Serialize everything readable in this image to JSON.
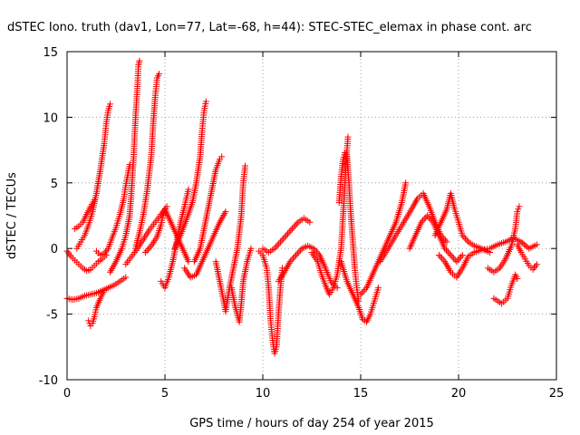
{
  "chart_data": {
    "type": "scatter",
    "title": "dSTEC Iono. truth (dav1, Lon=77, Lat=-68, h=44): STEC-STEC_elemax in phase cont. arc",
    "xlabel": "GPS time / hours of day 254 of year 2015",
    "ylabel": "dSTEC  / TECUs",
    "xlim": [
      0,
      25
    ],
    "ylim": [
      -10,
      15
    ],
    "xticks": [
      0,
      5,
      10,
      15,
      20,
      25
    ],
    "yticks": [
      -10,
      -5,
      0,
      5,
      10,
      15
    ],
    "xtick_labels": [
      "0",
      "5",
      "10",
      "15",
      "20",
      "25"
    ],
    "ytick_labels": [
      "-10",
      "-5",
      "0",
      "5",
      "10",
      "15"
    ],
    "grid": true,
    "marker": "+",
    "color": "#ff0000",
    "series": [
      {
        "values_xy": [
          [
            0.0,
            -0.2
          ],
          [
            0.2,
            -0.6
          ],
          [
            0.4,
            -0.9
          ],
          [
            0.6,
            -1.2
          ],
          [
            0.8,
            -1.5
          ],
          [
            1.0,
            -1.7
          ],
          [
            1.2,
            -1.6
          ],
          [
            1.4,
            -1.3
          ],
          [
            1.6,
            -1.0
          ],
          [
            1.8,
            -0.8
          ],
          [
            2.0,
            -0.5
          ]
        ]
      },
      {
        "values_xy": [
          [
            0.0,
            -3.8
          ],
          [
            0.3,
            -3.9
          ],
          [
            0.6,
            -3.8
          ],
          [
            0.9,
            -3.6
          ],
          [
            1.2,
            -3.5
          ],
          [
            1.5,
            -3.4
          ],
          [
            1.8,
            -3.2
          ],
          [
            2.1,
            -3.0
          ],
          [
            2.4,
            -2.8
          ],
          [
            2.7,
            -2.5
          ],
          [
            3.0,
            -2.2
          ]
        ]
      },
      {
        "values_xy": [
          [
            0.5,
            0.0
          ],
          [
            0.7,
            0.5
          ],
          [
            0.9,
            1.0
          ],
          [
            1.1,
            1.8
          ],
          [
            1.3,
            2.8
          ],
          [
            1.5,
            4.2
          ],
          [
            1.7,
            6.0
          ],
          [
            1.9,
            8.0
          ],
          [
            2.0,
            9.5
          ],
          [
            2.1,
            10.5
          ],
          [
            2.2,
            11.0
          ]
        ]
      },
      {
        "values_xy": [
          [
            0.4,
            1.5
          ],
          [
            0.6,
            1.7
          ],
          [
            0.8,
            2.0
          ],
          [
            1.0,
            2.6
          ],
          [
            1.2,
            3.2
          ],
          [
            1.4,
            3.7
          ]
        ]
      },
      {
        "values_xy": [
          [
            1.1,
            -5.5
          ],
          [
            1.2,
            -5.9
          ],
          [
            1.3,
            -5.7
          ],
          [
            1.4,
            -5.2
          ],
          [
            1.5,
            -4.5
          ],
          [
            1.7,
            -3.8
          ],
          [
            1.9,
            -3.2
          ]
        ]
      },
      {
        "values_xy": [
          [
            1.5,
            -0.2
          ],
          [
            1.7,
            -0.5
          ],
          [
            1.9,
            -0.4
          ],
          [
            2.1,
            0.0
          ],
          [
            2.3,
            0.8
          ],
          [
            2.5,
            1.6
          ],
          [
            2.7,
            2.6
          ],
          [
            2.9,
            3.8
          ],
          [
            3.0,
            4.8
          ],
          [
            3.1,
            5.6
          ],
          [
            3.2,
            6.4
          ]
        ]
      },
      {
        "values_xy": [
          [
            2.2,
            -1.8
          ],
          [
            2.5,
            -1.0
          ],
          [
            2.8,
            0.0
          ],
          [
            3.0,
            1.0
          ],
          [
            3.2,
            2.5
          ],
          [
            3.3,
            4.5
          ],
          [
            3.4,
            7.0
          ],
          [
            3.5,
            10.0
          ],
          [
            3.6,
            12.5
          ],
          [
            3.65,
            14.0
          ],
          [
            3.7,
            14.3
          ]
        ]
      },
      {
        "values_xy": [
          [
            3.5,
            0.0
          ],
          [
            3.7,
            1.2
          ],
          [
            3.9,
            2.6
          ],
          [
            4.1,
            4.5
          ],
          [
            4.3,
            7.0
          ],
          [
            4.4,
            9.5
          ],
          [
            4.5,
            11.5
          ],
          [
            4.6,
            13.0
          ],
          [
            4.7,
            13.3
          ]
        ]
      },
      {
        "values_xy": [
          [
            3.0,
            -1.2
          ],
          [
            3.3,
            -0.6
          ],
          [
            3.6,
            0.0
          ],
          [
            3.9,
            0.7
          ],
          [
            4.2,
            1.4
          ],
          [
            4.5,
            2.0
          ],
          [
            4.8,
            2.6
          ],
          [
            5.1,
            3.2
          ]
        ]
      },
      {
        "values_xy": [
          [
            4.0,
            -0.3
          ],
          [
            4.3,
            0.2
          ],
          [
            4.6,
            0.9
          ],
          [
            4.8,
            1.8
          ],
          [
            4.9,
            2.5
          ],
          [
            5.0,
            3.0
          ],
          [
            5.3,
            2.0
          ],
          [
            5.6,
            1.0
          ],
          [
            5.9,
            0.0
          ],
          [
            6.2,
            -1.0
          ]
        ]
      },
      {
        "values_xy": [
          [
            4.8,
            -2.5
          ],
          [
            5.0,
            -3.0
          ],
          [
            5.2,
            -2.2
          ],
          [
            5.4,
            -1.0
          ],
          [
            5.6,
            0.5
          ],
          [
            5.8,
            2.0
          ],
          [
            6.0,
            3.2
          ],
          [
            6.2,
            4.5
          ]
        ]
      },
      {
        "values_xy": [
          [
            5.5,
            0.0
          ],
          [
            5.8,
            1.0
          ],
          [
            6.1,
            2.2
          ],
          [
            6.4,
            3.5
          ],
          [
            6.6,
            5.0
          ],
          [
            6.8,
            7.0
          ],
          [
            6.9,
            9.0
          ],
          [
            7.0,
            10.5
          ],
          [
            7.1,
            11.2
          ]
        ]
      },
      {
        "values_xy": [
          [
            6.5,
            -1.0
          ],
          [
            6.8,
            0.0
          ],
          [
            7.0,
            1.5
          ],
          [
            7.2,
            3.0
          ],
          [
            7.4,
            4.5
          ],
          [
            7.6,
            6.0
          ],
          [
            7.8,
            6.8
          ],
          [
            7.9,
            7.0
          ]
        ]
      },
      {
        "values_xy": [
          [
            6.0,
            -1.5
          ],
          [
            6.3,
            -2.2
          ],
          [
            6.6,
            -2.0
          ],
          [
            6.9,
            -1.0
          ],
          [
            7.2,
            0.0
          ],
          [
            7.5,
            1.0
          ],
          [
            7.8,
            2.0
          ],
          [
            8.1,
            2.8
          ]
        ]
      },
      {
        "values_xy": [
          [
            7.6,
            -1.0
          ],
          [
            7.8,
            -2.5
          ],
          [
            8.0,
            -4.0
          ],
          [
            8.1,
            -4.8
          ],
          [
            8.3,
            -3.0
          ],
          [
            8.5,
            -1.5
          ],
          [
            8.7,
            0.0
          ],
          [
            8.9,
            2.5
          ],
          [
            9.0,
            5.0
          ],
          [
            9.1,
            6.3
          ]
        ]
      },
      {
        "values_xy": [
          [
            8.4,
            -3.0
          ],
          [
            8.6,
            -4.5
          ],
          [
            8.8,
            -5.6
          ],
          [
            8.9,
            -4.2
          ],
          [
            9.0,
            -2.5
          ],
          [
            9.2,
            -1.0
          ],
          [
            9.4,
            0.0
          ]
        ]
      },
      {
        "values_xy": [
          [
            9.8,
            -0.2
          ],
          [
            10.0,
            -0.5
          ],
          [
            10.2,
            -1.5
          ],
          [
            10.3,
            -3.0
          ],
          [
            10.4,
            -5.5
          ],
          [
            10.5,
            -7.0
          ],
          [
            10.6,
            -8.0
          ],
          [
            10.7,
            -7.5
          ],
          [
            10.8,
            -5.0
          ],
          [
            10.9,
            -3.0
          ],
          [
            11.0,
            -1.5
          ]
        ]
      },
      {
        "values_xy": [
          [
            10.0,
            0.0
          ],
          [
            10.3,
            -0.3
          ],
          [
            10.6,
            0.0
          ],
          [
            10.9,
            0.5
          ],
          [
            11.2,
            1.0
          ],
          [
            11.5,
            1.5
          ],
          [
            11.8,
            2.0
          ],
          [
            12.1,
            2.3
          ],
          [
            12.4,
            2.0
          ]
        ]
      },
      {
        "values_xy": [
          [
            10.8,
            -2.5
          ],
          [
            11.1,
            -1.8
          ],
          [
            11.4,
            -1.0
          ],
          [
            11.7,
            -0.5
          ],
          [
            12.0,
            0.0
          ],
          [
            12.3,
            0.2
          ],
          [
            12.6,
            0.0
          ],
          [
            12.9,
            -0.5
          ],
          [
            13.2,
            -1.5
          ],
          [
            13.5,
            -2.6
          ],
          [
            13.8,
            -3.0
          ]
        ]
      },
      {
        "values_xy": [
          [
            12.5,
            -0.3
          ],
          [
            12.8,
            -1.0
          ],
          [
            13.0,
            -2.0
          ],
          [
            13.2,
            -2.8
          ],
          [
            13.4,
            -3.5
          ],
          [
            13.6,
            -3.0
          ],
          [
            13.8,
            -2.0
          ],
          [
            14.0,
            0.0
          ],
          [
            14.1,
            2.5
          ],
          [
            14.2,
            5.0
          ],
          [
            14.3,
            7.5
          ],
          [
            14.35,
            8.5
          ]
        ]
      },
      {
        "values_xy": [
          [
            13.9,
            3.5
          ],
          [
            14.0,
            5.5
          ],
          [
            14.1,
            6.8
          ],
          [
            14.2,
            7.3
          ],
          [
            14.3,
            7.0
          ],
          [
            14.4,
            5.0
          ],
          [
            14.5,
            2.5
          ],
          [
            14.6,
            0.5
          ],
          [
            14.7,
            -1.5
          ],
          [
            14.8,
            -3.0
          ],
          [
            14.9,
            -4.0
          ]
        ]
      },
      {
        "values_xy": [
          [
            14.0,
            -1.0
          ],
          [
            14.3,
            -2.5
          ],
          [
            14.6,
            -3.5
          ],
          [
            14.9,
            -4.5
          ],
          [
            15.1,
            -5.4
          ],
          [
            15.3,
            -5.6
          ],
          [
            15.5,
            -5.0
          ],
          [
            15.7,
            -4.0
          ],
          [
            15.9,
            -3.0
          ]
        ]
      },
      {
        "values_xy": [
          [
            15.0,
            -3.5
          ],
          [
            15.3,
            -3.0
          ],
          [
            15.6,
            -2.0
          ],
          [
            15.9,
            -1.0
          ],
          [
            16.2,
            0.0
          ],
          [
            16.5,
            1.0
          ],
          [
            16.8,
            2.0
          ],
          [
            17.1,
            3.5
          ],
          [
            17.3,
            5.0
          ]
        ]
      },
      {
        "values_xy": [
          [
            16.0,
            -1.0
          ],
          [
            16.4,
            0.0
          ],
          [
            16.8,
            1.0
          ],
          [
            17.2,
            2.0
          ],
          [
            17.6,
            3.0
          ],
          [
            17.9,
            3.8
          ],
          [
            18.2,
            4.2
          ],
          [
            18.5,
            3.2
          ],
          [
            18.8,
            2.0
          ],
          [
            19.1,
            1.0
          ],
          [
            19.4,
            0.5
          ]
        ]
      },
      {
        "values_xy": [
          [
            17.5,
            0.0
          ],
          [
            17.8,
            1.0
          ],
          [
            18.1,
            2.0
          ],
          [
            18.4,
            2.5
          ],
          [
            18.7,
            2.0
          ],
          [
            19.0,
            1.0
          ],
          [
            19.3,
            0.0
          ],
          [
            19.6,
            -0.5
          ],
          [
            19.9,
            -1.0
          ],
          [
            20.2,
            -0.5
          ]
        ]
      },
      {
        "values_xy": [
          [
            18.8,
            1.0
          ],
          [
            19.1,
            2.0
          ],
          [
            19.4,
            3.0
          ],
          [
            19.6,
            4.2
          ],
          [
            19.8,
            3.0
          ],
          [
            20.0,
            2.0
          ],
          [
            20.2,
            1.0
          ],
          [
            20.5,
            0.5
          ],
          [
            20.8,
            0.2
          ],
          [
            21.2,
            0.0
          ],
          [
            21.6,
            -0.3
          ]
        ]
      },
      {
        "values_xy": [
          [
            19.0,
            -0.5
          ],
          [
            19.3,
            -1.0
          ],
          [
            19.6,
            -1.8
          ],
          [
            19.9,
            -2.2
          ],
          [
            20.2,
            -1.5
          ],
          [
            20.5,
            -0.6
          ],
          [
            20.8,
            -0.3
          ],
          [
            21.2,
            -0.1
          ],
          [
            21.6,
            0.0
          ],
          [
            22.0,
            0.3
          ],
          [
            22.4,
            0.5
          ],
          [
            22.8,
            0.8
          ],
          [
            23.2,
            0.5
          ],
          [
            23.6,
            0.0
          ],
          [
            24.0,
            0.3
          ]
        ]
      },
      {
        "values_xy": [
          [
            21.5,
            -1.5
          ],
          [
            21.8,
            -1.8
          ],
          [
            22.1,
            -1.5
          ],
          [
            22.4,
            -0.8
          ],
          [
            22.7,
            0.2
          ],
          [
            22.9,
            1.5
          ],
          [
            23.0,
            2.8
          ],
          [
            23.1,
            3.2
          ]
        ]
      },
      {
        "values_xy": [
          [
            21.8,
            -3.8
          ],
          [
            22.0,
            -4.0
          ],
          [
            22.2,
            -4.2
          ],
          [
            22.5,
            -3.8
          ],
          [
            22.7,
            -2.8
          ],
          [
            22.9,
            -2.0
          ],
          [
            23.0,
            -2.3
          ]
        ]
      },
      {
        "values_xy": [
          [
            23.0,
            0.3
          ],
          [
            23.2,
            -0.3
          ],
          [
            23.4,
            -0.8
          ],
          [
            23.6,
            -1.3
          ],
          [
            23.8,
            -1.6
          ],
          [
            24.0,
            -1.2
          ]
        ]
      }
    ]
  }
}
